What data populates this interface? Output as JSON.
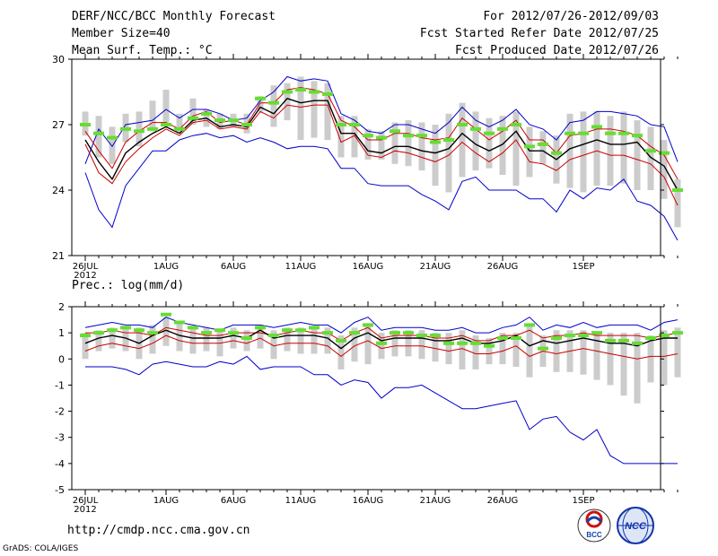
{
  "header": {
    "title": "DERF/NCC/BCC Monthly Forecast",
    "member": "Member Size=40",
    "var1": "Mean Surf. Temp.: °C",
    "period": "For 2012/07/26-2012/09/03",
    "started": "Fcst Started Refer Date 2012/07/25",
    "produced": "Fcst Produced Date 2012/07/26"
  },
  "footer": {
    "url": "http://cmdp.ncc.cma.gov.cn",
    "grads": "GrADS: COLA/IGES",
    "logo1": "BCC",
    "logo2": "NCC"
  },
  "colors": {
    "box": "#cccccc",
    "median": "#66dd33",
    "mean": "#000000",
    "spread": "#cc0000",
    "extreme": "#0000cc"
  },
  "chart_data": [
    {
      "type": "line",
      "title": "Mean Surf. Temp.: °C",
      "ylim": [
        21,
        30
      ],
      "yticks": [
        "30",
        "27",
        "24",
        "21"
      ],
      "ytick_values": [
        30,
        27,
        24,
        21
      ],
      "xtick_labels": [
        "26JUL",
        "1AUG",
        "6AUG",
        "11AUG",
        "16AUG",
        "21AUG",
        "26AUG",
        "1SEP"
      ],
      "xtick_days": [
        0,
        6,
        11,
        16,
        21,
        26,
        31,
        37
      ],
      "year_label": "2012",
      "series": [
        {
          "name": "max",
          "values": [
            25.2,
            26.8,
            26.0,
            27.0,
            27.1,
            27.2,
            27.7,
            27.3,
            27.7,
            27.7,
            27.5,
            27.2,
            27.3,
            28.1,
            28.5,
            29.2,
            29.0,
            29.1,
            29.0,
            27.5,
            27.2,
            26.7,
            26.6,
            27.0,
            27.0,
            26.8,
            26.6,
            27.1,
            27.8,
            27.2,
            26.9,
            27.2,
            27.7,
            27.0,
            26.8,
            26.3,
            27.1,
            27.2,
            27.6,
            27.6,
            27.5,
            27.4,
            27.0,
            26.9,
            25.3
          ]
        },
        {
          "name": "upper",
          "values": [
            26.7,
            25.8,
            25.0,
            26.2,
            26.7,
            27.1,
            27.1,
            26.8,
            27.4,
            27.6,
            27.1,
            27.2,
            27.0,
            28.0,
            28.0,
            28.6,
            28.7,
            28.6,
            28.4,
            27.2,
            26.9,
            26.3,
            26.3,
            26.6,
            26.6,
            26.4,
            26.3,
            26.4,
            27.3,
            26.8,
            26.3,
            26.7,
            27.2,
            26.3,
            26.3,
            25.7,
            26.5,
            26.6,
            26.8,
            26.8,
            26.7,
            26.5,
            26.0,
            25.6,
            24.5
          ]
        },
        {
          "name": "mean",
          "values": [
            26.3,
            25.3,
            24.5,
            25.7,
            26.2,
            26.6,
            26.9,
            26.6,
            27.2,
            27.3,
            26.9,
            27.0,
            26.9,
            27.8,
            27.5,
            28.2,
            28.0,
            28.1,
            28.1,
            26.6,
            26.6,
            25.8,
            25.7,
            26.0,
            26.0,
            25.8,
            25.7,
            25.9,
            26.6,
            26.1,
            25.8,
            26.1,
            26.7,
            25.8,
            25.8,
            25.4,
            25.9,
            26.1,
            26.3,
            26.1,
            26.1,
            26.2,
            25.5,
            25.1,
            24.0
          ]
        },
        {
          "name": "lower",
          "values": [
            26.1,
            24.8,
            24.3,
            25.3,
            25.9,
            26.4,
            26.8,
            26.5,
            27.1,
            27.2,
            26.8,
            26.9,
            26.8,
            27.6,
            27.3,
            27.9,
            27.8,
            27.9,
            27.9,
            26.2,
            26.5,
            25.6,
            25.5,
            25.8,
            25.7,
            25.5,
            25.3,
            25.6,
            26.2,
            25.7,
            25.3,
            25.7,
            26.3,
            25.3,
            25.2,
            24.9,
            25.4,
            25.6,
            25.8,
            25.6,
            25.6,
            25.4,
            25.2,
            24.6,
            23.3
          ]
        },
        {
          "name": "min",
          "values": [
            24.8,
            23.1,
            22.3,
            24.2,
            25.0,
            25.8,
            25.8,
            26.3,
            26.5,
            26.6,
            26.4,
            26.5,
            26.2,
            26.4,
            26.2,
            25.9,
            26.0,
            26.0,
            25.9,
            25.0,
            25.0,
            24.3,
            24.2,
            24.2,
            24.2,
            23.8,
            23.5,
            23.1,
            24.4,
            24.6,
            24.0,
            24.0,
            24.0,
            23.6,
            23.6,
            23.0,
            24.0,
            23.6,
            24.1,
            24.0,
            24.5,
            23.5,
            23.3,
            22.8,
            21.7
          ]
        },
        {
          "name": "median",
          "values": [
            27.0,
            26.6,
            26.4,
            26.8,
            26.7,
            26.8,
            27.0,
            26.8,
            27.3,
            27.5,
            27.2,
            27.2,
            27.0,
            28.2,
            28.0,
            28.5,
            28.6,
            28.5,
            28.4,
            27.0,
            27.0,
            26.5,
            26.4,
            26.7,
            26.5,
            26.5,
            26.2,
            26.3,
            27.0,
            26.8,
            26.6,
            26.8,
            27.0,
            26.0,
            26.1,
            25.7,
            26.6,
            26.6,
            26.9,
            26.6,
            26.6,
            26.5,
            25.8,
            25.7,
            24.0
          ]
        },
        {
          "name": "box_high",
          "values": [
            27.6,
            27.4,
            26.9,
            27.5,
            27.6,
            28.1,
            28.6,
            27.5,
            28.2,
            27.7,
            27.5,
            27.5,
            27.5,
            28.3,
            28.8,
            28.9,
            29.2,
            29.0,
            28.9,
            27.4,
            27.4,
            26.8,
            26.7,
            27.1,
            27.2,
            27.1,
            27.0,
            27.5,
            28.0,
            27.6,
            27.3,
            27.4,
            27.6,
            26.9,
            26.7,
            26.5,
            27.5,
            27.6,
            27.6,
            27.4,
            27.6,
            27.2,
            26.9,
            26.3,
            24.5
          ]
        },
        {
          "name": "box_low",
          "values": [
            26.5,
            25.5,
            25.2,
            26.2,
            26.0,
            26.7,
            27.1,
            26.6,
            27.0,
            26.9,
            26.8,
            26.9,
            26.6,
            27.6,
            26.9,
            27.2,
            26.3,
            26.4,
            26.3,
            25.5,
            25.5,
            25.4,
            25.4,
            25.2,
            25.1,
            24.9,
            24.2,
            23.9,
            24.6,
            24.9,
            25.0,
            24.7,
            24.2,
            24.6,
            25.2,
            24.3,
            24.1,
            23.9,
            24.2,
            24.2,
            24.3,
            24.0,
            24.0,
            23.6,
            22.3
          ]
        }
      ]
    },
    {
      "type": "line",
      "title": "Prec.: log(mm/d)",
      "ylim": [
        -5,
        2
      ],
      "yticks": [
        "2",
        "1",
        "0",
        "-1",
        "-2",
        "-3",
        "-4",
        "-5"
      ],
      "ytick_values": [
        2,
        1,
        0,
        -1,
        -2,
        -3,
        -4,
        -5
      ],
      "xtick_labels": [
        "26JUL",
        "1AUG",
        "6AUG",
        "11AUG",
        "16AUG",
        "21AUG",
        "26AUG",
        "1SEP"
      ],
      "xtick_days": [
        0,
        6,
        11,
        16,
        21,
        26,
        31,
        37
      ],
      "year_label": "2012",
      "series": [
        {
          "name": "max",
          "values": [
            1.2,
            1.3,
            1.4,
            1.3,
            1.3,
            1.2,
            1.6,
            1.4,
            1.3,
            1.2,
            1.1,
            1.3,
            1.3,
            1.3,
            1.2,
            1.3,
            1.4,
            1.3,
            1.3,
            1.0,
            1.4,
            1.6,
            1.1,
            1.2,
            1.2,
            1.2,
            1.1,
            1.1,
            1.2,
            1.0,
            1.0,
            1.2,
            1.3,
            1.6,
            1.1,
            1.3,
            1.2,
            1.4,
            1.2,
            1.3,
            1.3,
            1.3,
            1.1,
            1.4,
            1.5
          ]
        },
        {
          "name": "upper",
          "values": [
            1.0,
            1.0,
            1.1,
            1.0,
            1.0,
            0.9,
            1.2,
            1.1,
            1.0,
            0.9,
            0.9,
            1.0,
            1.0,
            1.0,
            0.9,
            1.0,
            1.1,
            1.0,
            1.0,
            0.7,
            1.0,
            1.2,
            0.8,
            0.9,
            0.9,
            0.9,
            0.8,
            0.8,
            0.9,
            0.7,
            0.7,
            0.9,
            0.9,
            1.1,
            0.8,
            0.9,
            0.9,
            1.0,
            0.9,
            0.9,
            0.9,
            0.9,
            0.8,
            0.9,
            1.0
          ]
        },
        {
          "name": "mean",
          "values": [
            0.6,
            0.8,
            0.9,
            0.8,
            0.6,
            0.9,
            1.1,
            0.9,
            0.8,
            0.8,
            0.8,
            0.9,
            0.8,
            1.1,
            0.8,
            0.9,
            0.9,
            0.9,
            0.8,
            0.4,
            0.8,
            1.0,
            0.7,
            0.8,
            0.8,
            0.8,
            0.7,
            0.7,
            0.8,
            0.6,
            0.6,
            0.7,
            0.9,
            0.5,
            0.7,
            0.6,
            0.7,
            0.8,
            0.7,
            0.6,
            0.6,
            0.5,
            0.7,
            0.8,
            0.8
          ]
        },
        {
          "name": "lower",
          "values": [
            0.3,
            0.5,
            0.6,
            0.5,
            0.4,
            0.6,
            0.9,
            0.7,
            0.6,
            0.6,
            0.6,
            0.7,
            0.6,
            0.8,
            0.5,
            0.6,
            0.6,
            0.6,
            0.5,
            0.1,
            0.5,
            0.7,
            0.4,
            0.5,
            0.5,
            0.5,
            0.4,
            0.3,
            0.4,
            0.2,
            0.2,
            0.3,
            0.5,
            0.1,
            0.3,
            0.2,
            0.3,
            0.4,
            0.3,
            0.2,
            0.1,
            0.0,
            0.1,
            0.1,
            0.2
          ]
        },
        {
          "name": "min",
          "values": [
            -0.3,
            -0.3,
            -0.3,
            -0.4,
            -0.6,
            -0.2,
            -0.1,
            -0.2,
            -0.3,
            -0.3,
            -0.1,
            -0.2,
            0.1,
            -0.4,
            -0.3,
            -0.3,
            -0.3,
            -0.6,
            -0.6,
            -1.0,
            -0.8,
            -0.9,
            -1.5,
            -1.1,
            -1.1,
            -1.0,
            -1.3,
            -1.6,
            -1.9,
            -1.9,
            -1.8,
            -1.7,
            -1.6,
            -2.7,
            -2.3,
            -2.2,
            -2.8,
            -3.1,
            -2.7,
            -3.7,
            -4.0,
            -4.0,
            -4.0,
            -4.0,
            -4.0
          ]
        },
        {
          "name": "median",
          "values": [
            0.9,
            1.0,
            1.1,
            1.2,
            1.1,
            1.0,
            1.7,
            1.4,
            1.2,
            1.0,
            1.1,
            1.0,
            0.8,
            1.2,
            0.9,
            1.1,
            1.1,
            1.2,
            1.0,
            0.7,
            1.0,
            1.3,
            0.6,
            1.0,
            1.0,
            0.9,
            0.9,
            0.6,
            0.6,
            0.6,
            0.5,
            0.8,
            0.8,
            1.3,
            0.4,
            0.8,
            0.9,
            0.9,
            1.0,
            0.7,
            0.7,
            0.6,
            0.8,
            0.9,
            1.0
          ]
        },
        {
          "name": "box_high",
          "values": [
            1.0,
            1.1,
            1.2,
            1.2,
            1.2,
            1.3,
            1.6,
            1.4,
            1.2,
            1.2,
            1.1,
            1.2,
            1.1,
            1.3,
            1.1,
            1.2,
            1.2,
            1.2,
            1.2,
            0.9,
            1.2,
            1.3,
            1.0,
            1.1,
            1.1,
            1.1,
            1.0,
            1.0,
            1.1,
            0.9,
            0.8,
            1.0,
            1.0,
            1.3,
            0.9,
            1.1,
            1.1,
            1.1,
            1.0,
            1.0,
            1.0,
            1.0,
            0.9,
            1.1,
            1.2
          ]
        },
        {
          "name": "box_low",
          "values": [
            0.0,
            0.3,
            0.4,
            0.3,
            0.0,
            0.2,
            0.5,
            0.3,
            0.2,
            0.3,
            0.1,
            0.4,
            0.3,
            0.4,
            0.0,
            0.3,
            0.2,
            0.2,
            0.2,
            -0.4,
            -0.1,
            -0.2,
            0.0,
            0.1,
            0.1,
            0.0,
            -0.1,
            -0.2,
            -0.4,
            -0.4,
            -0.2,
            -0.2,
            -0.3,
            -0.7,
            -0.3,
            -0.5,
            -0.5,
            -0.6,
            -0.8,
            -1.0,
            -1.4,
            -1.7,
            -0.9,
            -1.0,
            -0.7
          ]
        }
      ]
    }
  ]
}
